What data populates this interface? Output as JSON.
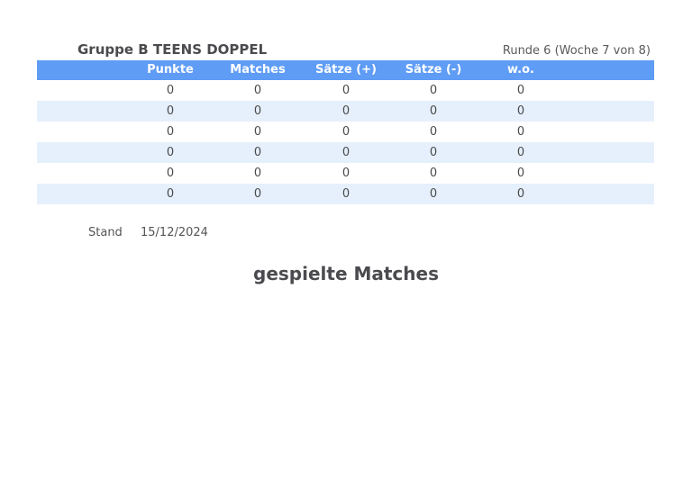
{
  "header": {
    "title": "Gruppe B TEENS DOPPEL",
    "round_info": "Runde 6 (Woche 7 von 8)"
  },
  "standings": {
    "columns": [
      "Punkte",
      "Matches",
      "Sätze (+)",
      "Sätze (-)",
      "w.o."
    ],
    "rows": [
      [
        "0",
        "0",
        "0",
        "0",
        "0"
      ],
      [
        "0",
        "0",
        "0",
        "0",
        "0"
      ],
      [
        "0",
        "0",
        "0",
        "0",
        "0"
      ],
      [
        "0",
        "0",
        "0",
        "0",
        "0"
      ],
      [
        "0",
        "0",
        "0",
        "0",
        "0"
      ],
      [
        "0",
        "0",
        "0",
        "0",
        "0"
      ]
    ],
    "header_color": "#5f9cf5",
    "alt_row_color": "#e6f0fd"
  },
  "stand": {
    "label": "Stand",
    "date": "15/12/2024"
  },
  "matches_section": {
    "title": "gespielte Matches"
  }
}
